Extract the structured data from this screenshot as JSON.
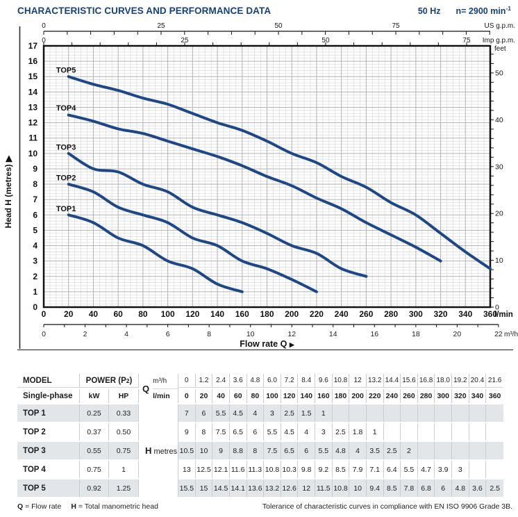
{
  "header": {
    "title": "CHARACTERISTIC CURVES AND PERFORMANCE DATA",
    "frequency": "50 Hz",
    "speed_base": "n= 2900 min",
    "speed_sup": "-1"
  },
  "colors": {
    "accent": "#16407f",
    "curve": "#1d4787",
    "grid_minor": "#d9d9d9",
    "grid_major": "#b3b3b3",
    "frame": "#111111",
    "row_shade": "#e3e6e9"
  },
  "chart_data": {
    "type": "line",
    "xlabel": "Flow rate Q",
    "xlabel_arrow": "▶",
    "ylabel": "Head H  (metres)",
    "ylabel_arrow": "▶",
    "x_axis_lmin": {
      "unit": "l/min",
      "min": 0,
      "max": 360,
      "label_step": 20,
      "minor_step": 5
    },
    "x_axis_m3h": {
      "unit": "m³/h",
      "min": 0,
      "max": 22,
      "label_step": 2,
      "minor_step": 1,
      "lmin_per_unit": 16.6667
    },
    "top_axis_us": {
      "unit": "US g.p.m.",
      "label_step": 25,
      "minor_step": 5,
      "lmin_per_unit": 3.785
    },
    "top_axis_imp": {
      "unit": "Imp g.p.m.",
      "label_step": 25,
      "minor_step": 5,
      "lmin_per_unit": 4.546
    },
    "y_axis": {
      "unit": "metres",
      "min": 0,
      "max": 17,
      "label_step": 1,
      "minor_step": 0.2
    },
    "right_axis": {
      "unit": "feet",
      "label_step": 10,
      "minor_step": 2,
      "m_per_unit": 0.3048
    },
    "series": [
      {
        "name": "TOP1",
        "label_at": {
          "x": 10,
          "y": 6.25
        },
        "points": [
          [
            20,
            6
          ],
          [
            40,
            5.5
          ],
          [
            60,
            4.5
          ],
          [
            80,
            4
          ],
          [
            100,
            3
          ],
          [
            120,
            2.5
          ],
          [
            140,
            1.5
          ],
          [
            160,
            1
          ]
        ]
      },
      {
        "name": "TOP2",
        "label_at": {
          "x": 10,
          "y": 8.25
        },
        "points": [
          [
            20,
            8
          ],
          [
            40,
            7.5
          ],
          [
            60,
            6.5
          ],
          [
            80,
            6
          ],
          [
            100,
            5.5
          ],
          [
            120,
            4.5
          ],
          [
            140,
            4
          ],
          [
            160,
            3
          ],
          [
            180,
            2.5
          ],
          [
            200,
            1.8
          ],
          [
            220,
            1
          ]
        ]
      },
      {
        "name": "TOP3",
        "label_at": {
          "x": 10,
          "y": 10.25
        },
        "points": [
          [
            20,
            10
          ],
          [
            40,
            9
          ],
          [
            60,
            8.8
          ],
          [
            80,
            8
          ],
          [
            100,
            7.5
          ],
          [
            120,
            6.5
          ],
          [
            140,
            6
          ],
          [
            160,
            5.5
          ],
          [
            180,
            4.8
          ],
          [
            200,
            4
          ],
          [
            220,
            3.5
          ],
          [
            240,
            2.5
          ],
          [
            260,
            2
          ]
        ]
      },
      {
        "name": "TOP4",
        "label_at": {
          "x": 10,
          "y": 12.8
        },
        "points": [
          [
            20,
            12.5
          ],
          [
            40,
            12.1
          ],
          [
            60,
            11.6
          ],
          [
            80,
            11.3
          ],
          [
            100,
            10.8
          ],
          [
            120,
            10.3
          ],
          [
            140,
            9.8
          ],
          [
            160,
            9.2
          ],
          [
            180,
            8.5
          ],
          [
            200,
            7.9
          ],
          [
            220,
            7.1
          ],
          [
            240,
            6.4
          ],
          [
            260,
            5.5
          ],
          [
            280,
            4.7
          ],
          [
            300,
            3.9
          ],
          [
            320,
            3
          ]
        ]
      },
      {
        "name": "TOP5",
        "label_at": {
          "x": 10,
          "y": 15.25
        },
        "points": [
          [
            20,
            15
          ],
          [
            40,
            14.5
          ],
          [
            60,
            14.1
          ],
          [
            80,
            13.6
          ],
          [
            100,
            13.2
          ],
          [
            120,
            12.6
          ],
          [
            140,
            12
          ],
          [
            160,
            11.5
          ],
          [
            180,
            10.8
          ],
          [
            200,
            10
          ],
          [
            220,
            9.4
          ],
          [
            240,
            8.5
          ],
          [
            260,
            7.8
          ],
          [
            280,
            6.8
          ],
          [
            300,
            6
          ],
          [
            320,
            4.8
          ],
          [
            340,
            3.6
          ],
          [
            360,
            2.5
          ]
        ]
      }
    ]
  },
  "table": {
    "header": {
      "model_label": "MODEL",
      "model_sub": "Single-phase",
      "power_main": "POWER (P",
      "power_sub": "2",
      "power_end": ")",
      "kw_label": "kW",
      "hp_label": "HP",
      "q_label": "Q",
      "q_unit_row1": "m³/h",
      "q_unit_row2": "l/min",
      "h_label": "H",
      "h_unit": "metres",
      "flow_m3h": [
        "0",
        "1.2",
        "2.4",
        "3.6",
        "4.8",
        "6.0",
        "7.2",
        "8.4",
        "9.6",
        "10.8",
        "12",
        "13.2",
        "14.4",
        "15.6",
        "16.8",
        "18.0",
        "19.2",
        "20.4",
        "21.6"
      ],
      "flow_lmin": [
        "0",
        "20",
        "40",
        "60",
        "80",
        "100",
        "120",
        "140",
        "160",
        "180",
        "200",
        "220",
        "240",
        "260",
        "280",
        "300",
        "320",
        "340",
        "360"
      ]
    },
    "rows": [
      {
        "model": "TOP 1",
        "kw": "0.25",
        "hp": "0.33",
        "h": [
          "7",
          "6",
          "5.5",
          "4.5",
          "4",
          "3",
          "2.5",
          "1.5",
          "1",
          "",
          "",
          "",
          "",
          "",
          "",
          "",
          "",
          "",
          ""
        ]
      },
      {
        "model": "TOP 2",
        "kw": "0.37",
        "hp": "0.50",
        "h": [
          "9",
          "8",
          "7.5",
          "6.5",
          "6",
          "5.5",
          "4.5",
          "4",
          "3",
          "2.5",
          "1.8",
          "1",
          "",
          "",
          "",
          "",
          "",
          "",
          ""
        ]
      },
      {
        "model": "TOP 3",
        "kw": "0.55",
        "hp": "0.75",
        "h": [
          "10.5",
          "10",
          "9",
          "8.8",
          "8",
          "7.5",
          "6.5",
          "6",
          "5.5",
          "4.8",
          "4",
          "3.5",
          "2.5",
          "2",
          "",
          "",
          "",
          "",
          ""
        ]
      },
      {
        "model": "TOP 4",
        "kw": "0.75",
        "hp": "1",
        "h": [
          "13",
          "12.5",
          "12.1",
          "11.6",
          "11.3",
          "10.8",
          "10.3",
          "9.8",
          "9.2",
          "8.5",
          "7.9",
          "7.1",
          "6.4",
          "5.5",
          "4.7",
          "3.9",
          "3",
          "",
          ""
        ]
      },
      {
        "model": "TOP 5",
        "kw": "0.92",
        "hp": "1.25",
        "h": [
          "15.5",
          "15",
          "14.5",
          "14.1",
          "13.6",
          "13.2",
          "12.6",
          "12",
          "11.5",
          "10.8",
          "10",
          "9.4",
          "8.5",
          "7.8",
          "6.8",
          "6",
          "4.8",
          "3.6",
          "2.5"
        ]
      }
    ]
  },
  "footer": {
    "q_bold": "Q",
    "q_text": " = Flow rate",
    "h_bold": "H",
    "h_text": " = Total manometric head",
    "right": "Tolerance of characteristic curves in compliance with EN ISO 9906 Grade 3B."
  }
}
